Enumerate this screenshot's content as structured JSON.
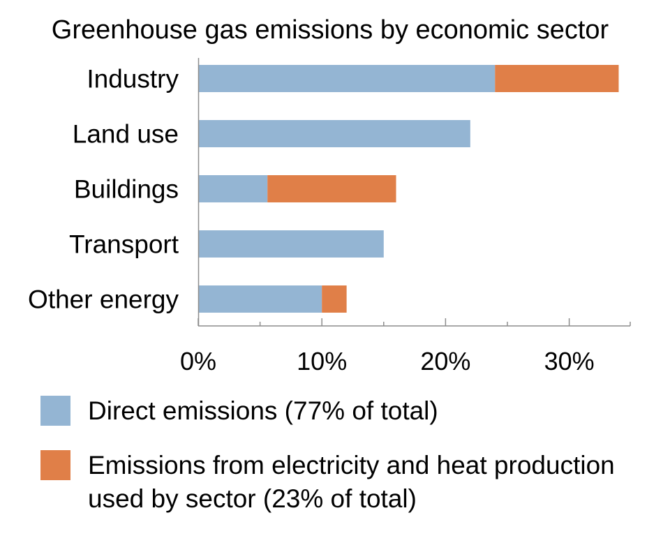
{
  "chart_data": {
    "type": "bar",
    "orientation": "horizontal",
    "stacked": true,
    "title": "Greenhouse gas emissions by economic sector",
    "xlabel": "",
    "ylabel": "",
    "xlim": [
      0,
      35
    ],
    "x_ticks": [
      0,
      10,
      20,
      30
    ],
    "x_tick_labels": [
      "0%",
      "10%",
      "20%",
      "30%"
    ],
    "x_minor_ticks": [
      5,
      15,
      25,
      35
    ],
    "grid": false,
    "categories": [
      "Industry",
      "Land use",
      "Buildings",
      "Transport",
      "Other energy"
    ],
    "series": [
      {
        "name": "Direct emissions (77% of total)",
        "color": "#94b5d3",
        "values": [
          24,
          22,
          5.6,
          15,
          10
        ]
      },
      {
        "name": "Emissions from electricity and heat production used by sector (23% of total)",
        "color": "#e07f48",
        "values": [
          10,
          0,
          10.4,
          0,
          2
        ]
      }
    ],
    "legend_position": "bottom"
  }
}
